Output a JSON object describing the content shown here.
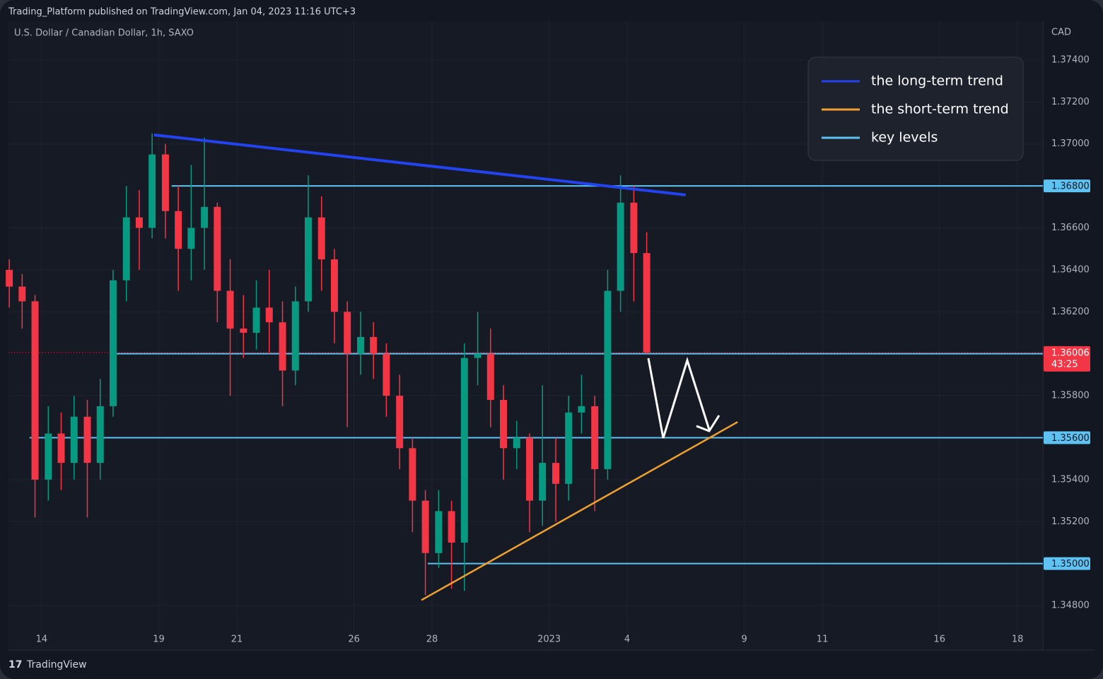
{
  "header": {
    "publisher": "Trading_Platform published on TradingView.com, Jan 04, 2023 11:16 UTC+3",
    "footer": "TradingView"
  },
  "chart_data": {
    "type": "candlestick",
    "title": "U.S. Dollar / Canadian Dollar, 1h, SAXO",
    "y_axis_label": "CAD",
    "x": [
      -0.83,
      -0.5,
      -0.17,
      0.17,
      0.5,
      0.83,
      1.17,
      1.5,
      1.83,
      2.17,
      2.5,
      2.83,
      3.17,
      3.5,
      3.83,
      4.17,
      4.5,
      4.83,
      5.17,
      5.5,
      5.83,
      6.17,
      6.5,
      6.83,
      7.17,
      7.5,
      7.83,
      8.17,
      8.5,
      8.83,
      9.17,
      9.5,
      9.83,
      10.17,
      10.5,
      10.83,
      11.17,
      11.5,
      11.83,
      12.17,
      12.5,
      12.83,
      13.17,
      13.5,
      13.83,
      14.17,
      14.5,
      14.83,
      15.17,
      15.5
    ],
    "open": [
      1.364,
      1.3632,
      1.3625,
      1.354,
      1.3562,
      1.3548,
      1.357,
      1.3548,
      1.3575,
      1.3635,
      1.3665,
      1.366,
      1.3695,
      1.3668,
      1.365,
      1.366,
      1.367,
      1.363,
      1.3612,
      1.361,
      1.3622,
      1.3615,
      1.3592,
      1.3625,
      1.3665,
      1.3645,
      1.362,
      1.36,
      1.3608,
      1.36,
      1.358,
      1.3555,
      1.353,
      1.3505,
      1.3525,
      1.351,
      1.3598,
      1.36,
      1.3578,
      1.3555,
      1.356,
      1.353,
      1.3548,
      1.3538,
      1.3572,
      1.3575,
      1.3545,
      1.363,
      1.3672,
      1.3648
    ],
    "high": [
      1.3645,
      1.3638,
      1.3628,
      1.3575,
      1.3572,
      1.358,
      1.3578,
      1.3588,
      1.364,
      1.368,
      1.3678,
      1.3705,
      1.37,
      1.368,
      1.369,
      1.3703,
      1.3672,
      1.3645,
      1.3628,
      1.3635,
      1.364,
      1.3625,
      1.3632,
      1.3685,
      1.3675,
      1.365,
      1.3625,
      1.362,
      1.3615,
      1.3605,
      1.359,
      1.356,
      1.3535,
      1.3535,
      1.353,
      1.3605,
      1.362,
      1.3612,
      1.3585,
      1.3568,
      1.3562,
      1.3585,
      1.356,
      1.358,
      1.359,
      1.358,
      1.364,
      1.3685,
      1.368,
      1.3658
    ],
    "low": [
      1.3622,
      1.3612,
      1.3522,
      1.353,
      1.3535,
      1.354,
      1.3522,
      1.354,
      1.357,
      1.3625,
      1.364,
      1.3655,
      1.3655,
      1.363,
      1.3635,
      1.364,
      1.3615,
      1.358,
      1.3598,
      1.3602,
      1.36,
      1.3575,
      1.3585,
      1.362,
      1.363,
      1.3605,
      1.3565,
      1.359,
      1.3588,
      1.357,
      1.3545,
      1.3515,
      1.3485,
      1.3498,
      1.3488,
      1.3487,
      1.3585,
      1.3565,
      1.354,
      1.3545,
      1.3515,
      1.3518,
      1.352,
      1.353,
      1.3562,
      1.3525,
      1.354,
      1.362,
      1.3625,
      1.36
    ],
    "close": [
      1.3632,
      1.3625,
      1.354,
      1.3562,
      1.3548,
      1.357,
      1.3548,
      1.3575,
      1.3635,
      1.3665,
      1.366,
      1.3695,
      1.3668,
      1.365,
      1.366,
      1.367,
      1.363,
      1.3612,
      1.361,
      1.3622,
      1.3615,
      1.3592,
      1.3625,
      1.3665,
      1.3645,
      1.362,
      1.36,
      1.3608,
      1.36,
      1.358,
      1.3555,
      1.353,
      1.3505,
      1.3525,
      1.351,
      1.3598,
      1.36,
      1.3578,
      1.3555,
      1.356,
      1.353,
      1.3548,
      1.3538,
      1.3572,
      1.3575,
      1.3545,
      1.363,
      1.3672,
      1.3648,
      1.36006
    ],
    "up_color": "#089981",
    "down_color": "#f23645",
    "xlim": [
      -0.85,
      25.65
    ],
    "xticks": [
      {
        "value": 0,
        "label": "14"
      },
      {
        "value": 3,
        "label": "19"
      },
      {
        "value": 5,
        "label": "21"
      },
      {
        "value": 8,
        "label": "26"
      },
      {
        "value": 10,
        "label": "28"
      },
      {
        "value": 13,
        "label": "2023"
      },
      {
        "value": 15,
        "label": "4"
      },
      {
        "value": 18,
        "label": "9"
      },
      {
        "value": 20,
        "label": "11"
      },
      {
        "value": 23,
        "label": "16"
      },
      {
        "value": 25,
        "label": "18"
      }
    ],
    "ylim": [
      1.34588,
      1.37585
    ],
    "yticks": [
      {
        "value": 1.374,
        "label": "1.37400"
      },
      {
        "value": 1.372,
        "label": "1.37200"
      },
      {
        "value": 1.37,
        "label": "1.37000"
      },
      {
        "value": 1.366,
        "label": "1.36600"
      },
      {
        "value": 1.364,
        "label": "1.36400"
      },
      {
        "value": 1.362,
        "label": "1.36200"
      },
      {
        "value": 1.358,
        "label": "1.35800"
      },
      {
        "value": 1.354,
        "label": "1.35400"
      },
      {
        "value": 1.352,
        "label": "1.35200"
      },
      {
        "value": 1.348,
        "label": "1.34800"
      }
    ],
    "grid": true,
    "last_price": {
      "value": 1.36006,
      "label": "1.36006",
      "countdown": "43:25",
      "color": "#f23645"
    },
    "trend_lines": [
      {
        "name": "the long-term trend",
        "color": "#2343f0",
        "x": [
          2.88,
          16.5
        ],
        "y": [
          1.37043,
          1.36757
        ]
      },
      {
        "name": "the short-term trend",
        "color": "#f0a030",
        "x": [
          9.73,
          17.83
        ],
        "y": [
          1.34826,
          1.35675
        ]
      }
    ],
    "key_levels": {
      "name": "key levels",
      "color": "#5ec2f2",
      "levels": [
        {
          "value": 1.368,
          "label": "1.36800",
          "start": 3.33
        },
        {
          "value": 1.36,
          "label": "1.36000",
          "start": 1.74
        },
        {
          "value": 1.356,
          "label": "1.35600",
          "start": -0.31
        },
        {
          "value": 1.35,
          "label": "1.35000",
          "start": 9.89
        }
      ]
    },
    "legend": "top-right"
  }
}
